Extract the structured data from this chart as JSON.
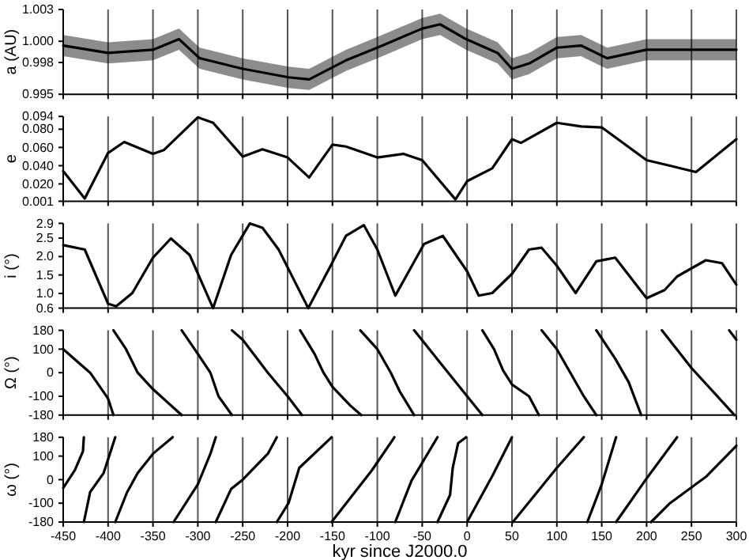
{
  "chart_data": [
    {
      "type": "line",
      "ylabel": "a (AU)",
      "xlim": [
        -450,
        300
      ],
      "xticks": [
        -450,
        -400,
        -350,
        -300,
        -250,
        -200,
        -150,
        -100,
        -50,
        0,
        50,
        100,
        150,
        200,
        250,
        300
      ],
      "ylim": [
        0.995,
        1.003
      ],
      "yticks": [
        {
          "value": 0.995,
          "label": "0.995"
        },
        {
          "value": 0.998,
          "label": "0.998"
        },
        {
          "value": 1.0,
          "label": "1.000"
        },
        {
          "value": 1.003,
          "label": "1.003"
        }
      ],
      "grid": "x",
      "tick_labels": "y",
      "series": [
        {
          "color": "#000000",
          "x": [
            -450,
            -400,
            -350,
            -321,
            -298,
            -250,
            -199,
            -176,
            -135,
            -100,
            -50,
            -30,
            -1,
            34,
            50,
            69,
            100,
            127,
            156,
            200,
            250,
            300
          ],
          "values": [
            0.9996,
            0.9989,
            0.9992,
            1.0002,
            0.9984,
            0.9974,
            0.9966,
            0.9964,
            0.9982,
            0.9994,
            1.0012,
            1.0016,
            1.0002,
            0.9989,
            0.9974,
            0.9979,
            0.9994,
            0.9996,
            0.9984,
            0.9992,
            0.9992,
            0.9992
          ],
          "lower": [
            0.9986,
            0.9979,
            0.9982,
            0.9992,
            0.9974,
            0.9964,
            0.9956,
            0.9954,
            0.9972,
            0.9984,
            1.0002,
            1.0006,
            0.9992,
            0.9979,
            0.9964,
            0.9969,
            0.9984,
            0.9986,
            0.9974,
            0.9982,
            0.9982,
            0.9982
          ],
          "upper": [
            1.0006,
            0.9999,
            1.0002,
            1.0012,
            0.9994,
            0.9984,
            0.9976,
            0.9974,
            0.9992,
            1.0004,
            1.0022,
            1.0026,
            1.0012,
            0.9999,
            0.9984,
            0.9989,
            1.0004,
            1.0006,
            0.9994,
            1.0002,
            1.0002,
            1.0002
          ]
        }
      ]
    },
    {
      "type": "line",
      "ylabel": "e",
      "xlim": [
        -450,
        300
      ],
      "xticks": [
        -450,
        -400,
        -350,
        -300,
        -250,
        -200,
        -150,
        -100,
        -50,
        0,
        50,
        100,
        150,
        200,
        250,
        300
      ],
      "ylim": [
        0.001,
        0.094
      ],
      "yticks": [
        {
          "value": 0.001,
          "label": "0.001"
        },
        {
          "value": 0.02,
          "label": "0.020"
        },
        {
          "value": 0.04,
          "label": "0.040"
        },
        {
          "value": 0.06,
          "label": "0.060"
        },
        {
          "value": 0.08,
          "label": "0.080"
        },
        {
          "value": 0.094,
          "label": "0.094"
        }
      ],
      "grid": "x",
      "tick_labels": "y",
      "series": [
        {
          "color": "#000000",
          "x": [
            -450,
            -426,
            -400,
            -382,
            -350,
            -338,
            -300,
            -283,
            -250,
            -228,
            -200,
            -176,
            -150,
            -135,
            -100,
            -71,
            -50,
            -13,
            0,
            28,
            50,
            60,
            100,
            127,
            150,
            200,
            226,
            255,
            300
          ],
          "values": [
            0.034,
            0.004,
            0.054,
            0.066,
            0.053,
            0.057,
            0.093,
            0.087,
            0.05,
            0.058,
            0.049,
            0.027,
            0.063,
            0.061,
            0.049,
            0.053,
            0.046,
            0.003,
            0.023,
            0.037,
            0.069,
            0.065,
            0.087,
            0.083,
            0.082,
            0.046,
            0.04,
            0.033,
            0.069
          ]
        }
      ]
    },
    {
      "type": "line",
      "ylabel": "i (°)",
      "xlim": [
        -450,
        300
      ],
      "xticks": [
        -450,
        -400,
        -350,
        -300,
        -250,
        -200,
        -150,
        -100,
        -50,
        0,
        50,
        100,
        150,
        200,
        250,
        300
      ],
      "ylim": [
        0.6,
        2.9
      ],
      "yticks": [
        0.6,
        {
          "value": 1.0,
          "label": "1.0"
        },
        1.5,
        {
          "value": 2.0,
          "label": "2.0"
        },
        2.5,
        2.9
      ],
      "grid": "x",
      "tick_labels": "y",
      "series": [
        {
          "color": "#000000",
          "x": [
            -450,
            -426,
            -400,
            -391,
            -373,
            -350,
            -330,
            -309,
            -283,
            -263,
            -242,
            -228,
            -210,
            -177,
            -152,
            -135,
            -115,
            -100,
            -80,
            -48,
            -27,
            0,
            13,
            28,
            50,
            69,
            83,
            100,
            121,
            144,
            165,
            200,
            220,
            234,
            266,
            284,
            300
          ],
          "values": [
            2.31,
            2.19,
            0.72,
            0.65,
            1.01,
            1.97,
            2.49,
            2.04,
            0.6,
            2.04,
            2.9,
            2.78,
            2.19,
            0.6,
            1.75,
            2.56,
            2.85,
            2.19,
            0.94,
            2.34,
            2.56,
            1.6,
            0.94,
            1.01,
            1.53,
            2.19,
            2.24,
            1.75,
            1.01,
            1.87,
            1.97,
            0.87,
            1.09,
            1.46,
            1.9,
            1.82,
            1.24
          ]
        }
      ]
    },
    {
      "type": "line",
      "ylabel": "Ω (°)",
      "xlim": [
        -450,
        300
      ],
      "xticks": [
        -450,
        -400,
        -350,
        -300,
        -250,
        -200,
        -150,
        -100,
        -50,
        0,
        50,
        100,
        150,
        200,
        250,
        300
      ],
      "ylim": [
        -180,
        180
      ],
      "yticks": [
        -180,
        -100,
        0,
        100,
        180
      ],
      "grid": "x",
      "tick_labels": "y",
      "series": [
        {
          "color": "#000000",
          "x": [
            -450,
            -420,
            -400,
            -394
          ],
          "values": [
            100,
            0,
            -110,
            -180
          ]
        },
        {
          "color": "#000000",
          "x": [
            -394,
            -380,
            -367,
            -350,
            -318
          ],
          "values": [
            180,
            100,
            0,
            -70,
            -180
          ]
        },
        {
          "color": "#000000",
          "x": [
            -318,
            -300,
            -286,
            -277,
            -262
          ],
          "values": [
            180,
            80,
            0,
            -100,
            -180
          ]
        },
        {
          "color": "#000000",
          "x": [
            -262,
            -250,
            -222,
            -200,
            -184
          ],
          "values": [
            180,
            140,
            0,
            -100,
            -180
          ]
        },
        {
          "color": "#000000",
          "x": [
            -186,
            -170,
            -160,
            -150,
            -130,
            -118
          ],
          "values": [
            180,
            80,
            0,
            -60,
            -140,
            -180
          ]
        },
        {
          "color": "#000000",
          "x": [
            -119,
            -100,
            -85,
            -75,
            -59
          ],
          "values": [
            180,
            100,
            0,
            -80,
            -180
          ]
        },
        {
          "color": "#000000",
          "x": [
            -59,
            -20,
            17
          ],
          "values": [
            180,
            -5,
            -180
          ]
        },
        {
          "color": "#000000",
          "x": [
            17,
            30,
            40,
            50,
            69,
            80
          ],
          "values": [
            180,
            100,
            10,
            -50,
            -100,
            -180
          ]
        },
        {
          "color": "#000000",
          "x": [
            83,
            100,
            115,
            130,
            144
          ],
          "values": [
            180,
            100,
            0,
            -100,
            -180
          ]
        },
        {
          "color": "#000000",
          "x": [
            144,
            165,
            180,
            194
          ],
          "values": [
            180,
            60,
            -40,
            -180
          ]
        },
        {
          "color": "#000000",
          "x": [
            217,
            250,
            298
          ],
          "values": [
            180,
            20,
            -180
          ]
        },
        {
          "color": "#000000",
          "x": [
            292,
            300
          ],
          "values": [
            180,
            140
          ]
        }
      ]
    },
    {
      "type": "line",
      "ylabel": "ω (°)",
      "xlabel": "kyr since J2000.0",
      "xlim": [
        -450,
        300
      ],
      "xticks": [
        -450,
        -400,
        -350,
        -300,
        -250,
        -200,
        -150,
        -100,
        -50,
        0,
        50,
        100,
        150,
        200,
        250,
        300
      ],
      "ylim": [
        -180,
        180
      ],
      "yticks": [
        -180,
        -100,
        0,
        100,
        180
      ],
      "grid": "x",
      "series": [
        {
          "color": "#000000",
          "x": [
            -450,
            -437,
            -428,
            -427
          ],
          "values": [
            -35,
            40,
            120,
            180
          ]
        },
        {
          "color": "#000000",
          "x": [
            -427,
            -420,
            -405,
            -398,
            -392
          ],
          "values": [
            -180,
            -53,
            28,
            110,
            180
          ]
        },
        {
          "color": "#000000",
          "x": [
            -392,
            -379,
            -367,
            -350,
            -328
          ],
          "values": [
            -180,
            -55,
            28,
            110,
            180
          ]
        },
        {
          "color": "#000000",
          "x": [
            -327,
            -300,
            -286,
            -280
          ],
          "values": [
            -180,
            -20,
            110,
            180
          ]
        },
        {
          "color": "#000000",
          "x": [
            -280,
            -263,
            -250,
            -222,
            -212
          ],
          "values": [
            -180,
            -40,
            0,
            110,
            180
          ]
        },
        {
          "color": "#000000",
          "x": [
            -212,
            -199,
            -187,
            -151
          ],
          "values": [
            -180,
            -100,
            50,
            180
          ]
        },
        {
          "color": "#000000",
          "x": [
            -151,
            -106,
            -81
          ],
          "values": [
            -180,
            40,
            180
          ]
        },
        {
          "color": "#000000",
          "x": [
            -80,
            -62,
            -33
          ],
          "values": [
            -180,
            -5,
            180
          ]
        },
        {
          "color": "#000000",
          "x": [
            -33,
            -19,
            -16,
            -10,
            -1
          ],
          "values": [
            -180,
            -65,
            50,
            155,
            180
          ]
        },
        {
          "color": "#000000",
          "x": [
            0,
            28,
            50
          ],
          "values": [
            -180,
            15,
            180
          ]
        },
        {
          "color": "#000000",
          "x": [
            51,
            100,
            130
          ],
          "values": [
            -180,
            50,
            180
          ]
        },
        {
          "color": "#000000",
          "x": [
            134,
            150,
            166
          ],
          "values": [
            -180,
            -20,
            180
          ]
        },
        {
          "color": "#000000",
          "x": [
            166,
            200,
            234
          ],
          "values": [
            -180,
            5,
            180
          ]
        },
        {
          "color": "#000000",
          "x": [
            205,
            226,
            267,
            300
          ],
          "values": [
            -180,
            -100,
            15,
            144
          ]
        }
      ]
    }
  ]
}
